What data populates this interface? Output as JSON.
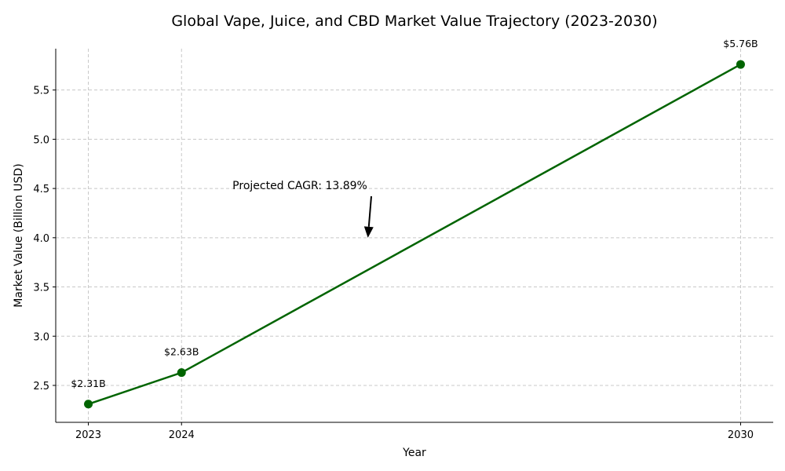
{
  "chart_data": {
    "type": "line",
    "title": "Global Vape, Juice, and CBD Market Value Trajectory (2023-2030)",
    "xlabel": "Year",
    "ylabel": "Market Value (Billion USD)",
    "x": [
      2023,
      2024,
      2030
    ],
    "x_tick_labels": [
      "2023",
      "2024",
      "2030"
    ],
    "y_ticks": [
      2.5,
      3.0,
      3.5,
      4.0,
      4.5,
      5.0,
      5.5
    ],
    "y_tick_labels": [
      "2.5",
      "3.0",
      "3.5",
      "4.0",
      "4.5",
      "5.0",
      "5.5"
    ],
    "xlim": [
      2022.65,
      2030.35
    ],
    "ylim": [
      2.125,
      5.92
    ],
    "grid": true,
    "series": [
      {
        "values": [
          2.31,
          2.63,
          5.76
        ],
        "color": "#006400",
        "marker": "circle"
      }
    ],
    "data_labels": [
      "$2.31B",
      "$2.63B",
      "$5.76B"
    ],
    "annotations": [
      {
        "text": "Projected CAGR: 13.89%",
        "arrow_to": [
          2026,
          4.0
        ]
      }
    ]
  }
}
